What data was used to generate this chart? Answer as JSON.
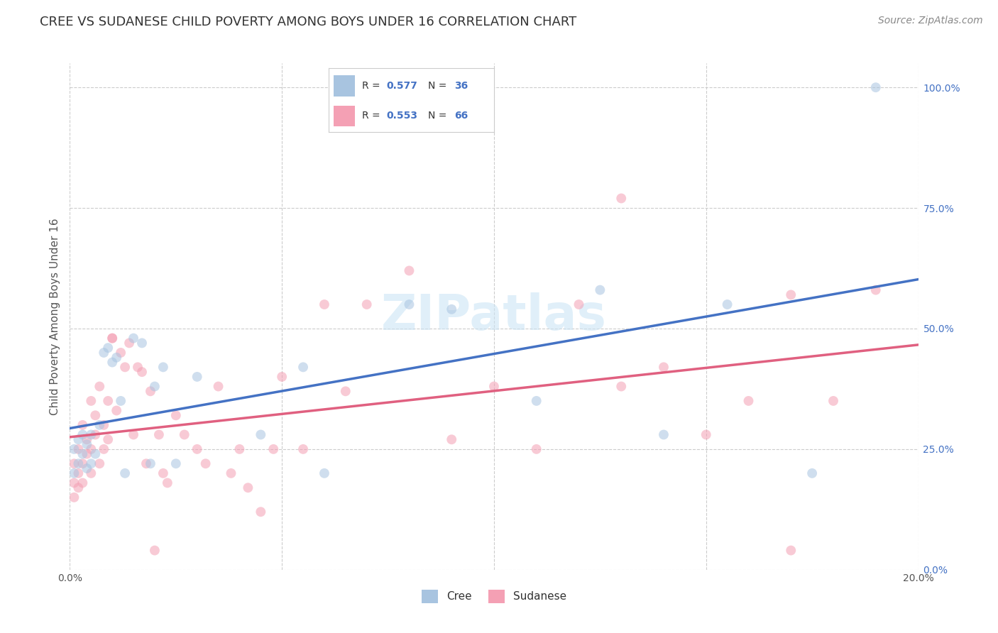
{
  "title": "CREE VS SUDANESE CHILD POVERTY AMONG BOYS UNDER 16 CORRELATION CHART",
  "source": "Source: ZipAtlas.com",
  "ylabel": "Child Poverty Among Boys Under 16",
  "watermark": "ZIPatlas",
  "cree_R": "0.577",
  "cree_N": "36",
  "sudanese_R": "0.553",
  "sudanese_N": "66",
  "cree_color": "#a8c4e0",
  "sudanese_color": "#f4a0b4",
  "cree_line_color": "#4472c4",
  "sudanese_line_color": "#e06080",
  "right_tick_color": "#4472c4",
  "background_color": "#ffffff",
  "grid_color": "#cccccc",
  "title_color": "#333333",
  "cree_x": [
    0.001,
    0.001,
    0.002,
    0.002,
    0.003,
    0.003,
    0.004,
    0.004,
    0.005,
    0.005,
    0.006,
    0.007,
    0.008,
    0.009,
    0.01,
    0.011,
    0.012,
    0.013,
    0.015,
    0.017,
    0.019,
    0.02,
    0.022,
    0.025,
    0.03,
    0.045,
    0.055,
    0.06,
    0.08,
    0.09,
    0.11,
    0.125,
    0.14,
    0.155,
    0.175,
    0.19
  ],
  "cree_y": [
    0.2,
    0.25,
    0.22,
    0.27,
    0.24,
    0.28,
    0.21,
    0.26,
    0.28,
    0.22,
    0.24,
    0.3,
    0.45,
    0.46,
    0.43,
    0.44,
    0.35,
    0.2,
    0.48,
    0.47,
    0.22,
    0.38,
    0.42,
    0.22,
    0.4,
    0.28,
    0.42,
    0.2,
    0.55,
    0.54,
    0.35,
    0.58,
    0.28,
    0.55,
    0.2,
    1.0
  ],
  "sudanese_x": [
    0.001,
    0.001,
    0.001,
    0.002,
    0.002,
    0.002,
    0.003,
    0.003,
    0.003,
    0.004,
    0.004,
    0.005,
    0.005,
    0.005,
    0.006,
    0.006,
    0.007,
    0.007,
    0.008,
    0.008,
    0.009,
    0.009,
    0.01,
    0.01,
    0.011,
    0.012,
    0.013,
    0.014,
    0.015,
    0.016,
    0.017,
    0.018,
    0.019,
    0.02,
    0.021,
    0.022,
    0.023,
    0.025,
    0.027,
    0.03,
    0.032,
    0.035,
    0.038,
    0.04,
    0.042,
    0.045,
    0.048,
    0.05,
    0.055,
    0.06,
    0.065,
    0.07,
    0.08,
    0.09,
    0.1,
    0.11,
    0.12,
    0.13,
    0.14,
    0.15,
    0.16,
    0.17,
    0.18,
    0.19,
    0.13,
    0.17
  ],
  "sudanese_y": [
    0.18,
    0.22,
    0.15,
    0.2,
    0.25,
    0.17,
    0.3,
    0.22,
    0.18,
    0.27,
    0.24,
    0.35,
    0.25,
    0.2,
    0.32,
    0.28,
    0.38,
    0.22,
    0.25,
    0.3,
    0.27,
    0.35,
    0.48,
    0.48,
    0.33,
    0.45,
    0.42,
    0.47,
    0.28,
    0.42,
    0.41,
    0.22,
    0.37,
    0.04,
    0.28,
    0.2,
    0.18,
    0.32,
    0.28,
    0.25,
    0.22,
    0.38,
    0.2,
    0.25,
    0.17,
    0.12,
    0.25,
    0.4,
    0.25,
    0.55,
    0.37,
    0.55,
    0.62,
    0.27,
    0.38,
    0.25,
    0.55,
    0.38,
    0.42,
    0.28,
    0.35,
    0.57,
    0.35,
    0.58,
    0.77,
    0.04
  ],
  "xlim": [
    0.0,
    0.2
  ],
  "ylim": [
    0.0,
    1.05
  ],
  "x_tick_positions": [
    0.0,
    0.05,
    0.1,
    0.15,
    0.2
  ],
  "x_tick_labels": [
    "0.0%",
    "",
    "",
    "",
    "20.0%"
  ],
  "y_tick_positions": [
    0.0,
    0.25,
    0.5,
    0.75,
    1.0
  ],
  "y_tick_labels": [
    "0.0%",
    "25.0%",
    "50.0%",
    "75.0%",
    "100.0%"
  ],
  "marker_size": 100,
  "marker_alpha": 0.55,
  "title_fontsize": 13,
  "axis_label_fontsize": 11,
  "tick_fontsize": 10,
  "source_fontsize": 10,
  "legend_fontsize": 11,
  "watermark_fontsize": 50
}
